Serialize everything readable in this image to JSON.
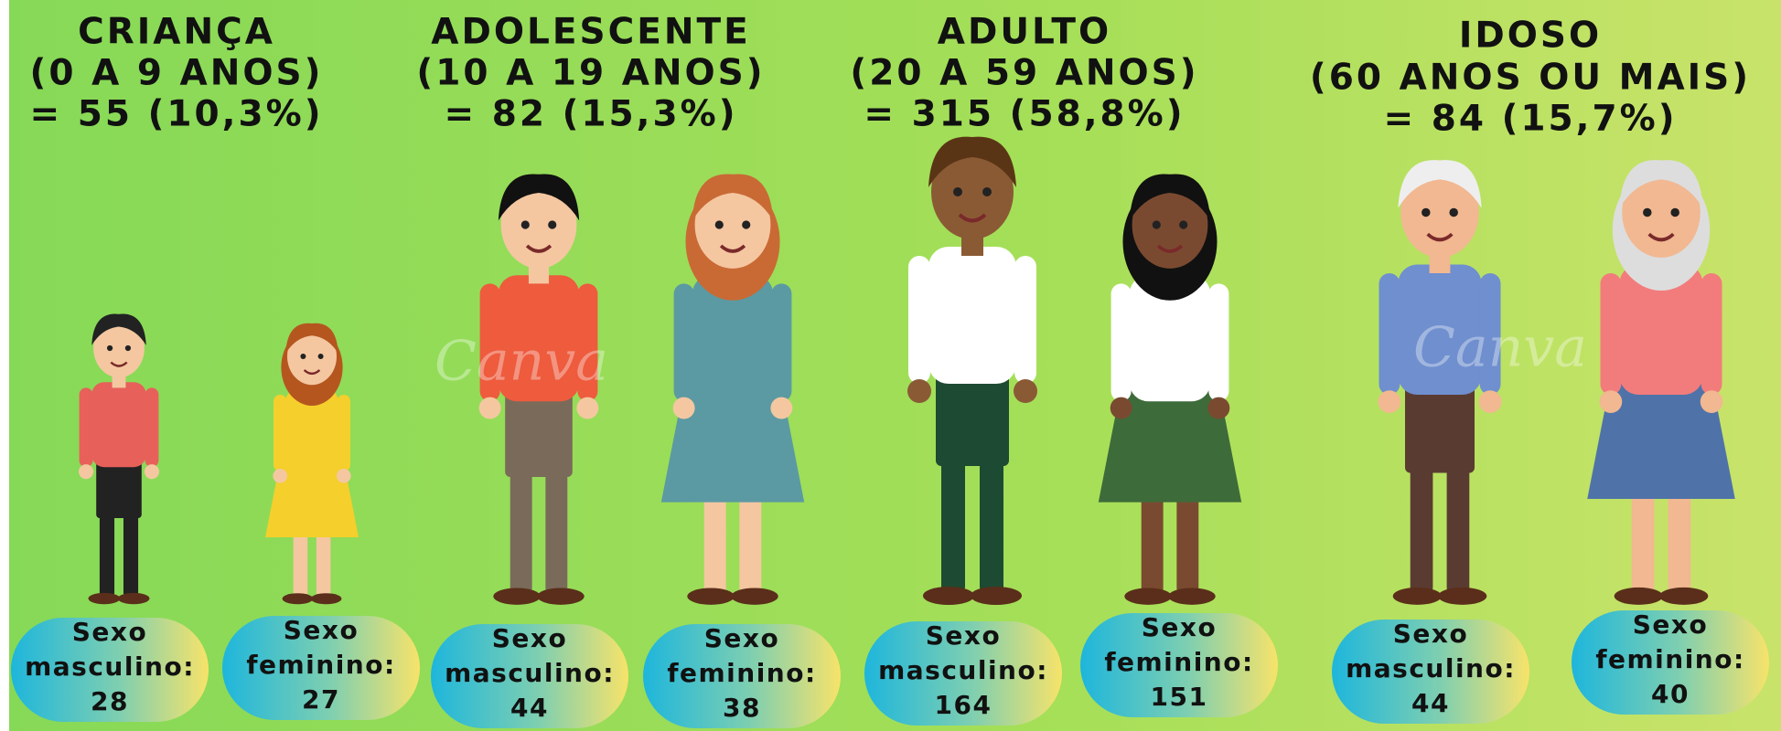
{
  "groups": [
    {
      "title": [
        "CRIANÇA",
        "(0 A 9 ANOS)",
        "= 55 (10,3%)"
      ],
      "people": [
        [
          "Sexo",
          "masculino:",
          "28"
        ],
        [
          "Sexo",
          "feminino:",
          "27"
        ]
      ]
    },
    {
      "title": [
        "ADOLESCENTE",
        "(10 A 19 ANOS)",
        "= 82 (15,3%)"
      ],
      "people": [
        [
          "Sexo",
          "masculino:",
          "44"
        ],
        [
          "Sexo",
          "feminino:",
          "38"
        ]
      ]
    },
    {
      "title": [
        "ADULTO",
        "(20 A 59 ANOS)",
        "= 315 (58,8%)"
      ],
      "people": [
        [
          "Sexo",
          "masculino:",
          "164"
        ],
        [
          "Sexo",
          "feminino:",
          "151"
        ]
      ]
    },
    {
      "title": [
        "IDOSO",
        "(60 ANOS OU MAIS)",
        "= 84 (15,7%)"
      ],
      "people": [
        [
          "Sexo",
          "masculino:",
          "44"
        ],
        [
          "Sexo",
          "feminino:",
          "40"
        ]
      ]
    }
  ],
  "watermark": "Canva"
}
